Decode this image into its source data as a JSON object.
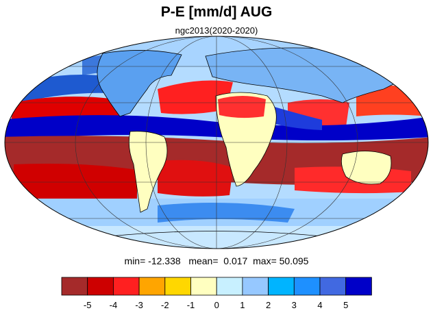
{
  "title": "P-E [mm/d] AUG",
  "subtitle": "ngc2013(2020-2020)",
  "stats": {
    "min_label": "min=",
    "min": "-12.338",
    "mean_label": "mean=",
    "mean": "0.017",
    "max_label": "max=",
    "max": "50.095"
  },
  "colorbar": {
    "colors": [
      "#a52a2a",
      "#cd0000",
      "#ff2020",
      "#ffa500",
      "#ffd700",
      "#ffffc0",
      "#c8f0ff",
      "#96c8ff",
      "#00b4ff",
      "#1e90ff",
      "#4169e1",
      "#0000c8"
    ],
    "ticks": [
      "-5",
      "-4",
      "-3",
      "-2",
      "-1",
      "0",
      "1",
      "2",
      "3",
      "4",
      "5"
    ]
  },
  "map": {
    "projection": "mollweide",
    "background": "#b4dcff"
  }
}
